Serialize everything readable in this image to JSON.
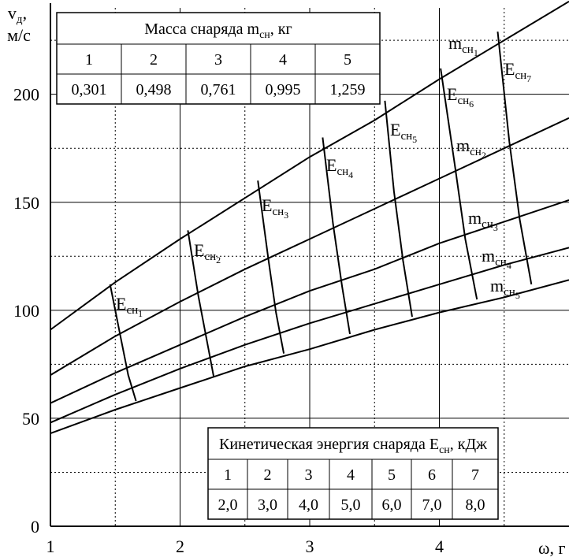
{
  "chart_data": {
    "type": "line",
    "ylabel_main": "v",
    "ylabel_sub": "д",
    "ylabel_suffix": ",",
    "ylabel_unit": "м/с",
    "xlabel": "ω, г",
    "xlim": [
      1,
      5
    ],
    "ylim": [
      0,
      240
    ],
    "xticks": [
      1,
      2,
      3,
      4
    ],
    "xtick_labels": [
      "1",
      "2",
      "3",
      "4"
    ],
    "yticks": [
      0,
      50,
      100,
      150,
      200
    ],
    "ytick_labels": [
      "0",
      "50",
      "100",
      "150",
      "200"
    ],
    "minor_grid": true,
    "mass_curves": [
      {
        "label_main": "m",
        "label_sub": "сн",
        "label_index": "1",
        "x": [
          1,
          1.5,
          2,
          2.5,
          3,
          3.5,
          4,
          4.5,
          5
        ],
        "y": [
          91,
          113,
          133,
          152,
          171,
          188,
          207,
          225,
          243
        ]
      },
      {
        "label_main": "m",
        "label_sub": "сн",
        "label_index": "2",
        "x": [
          1,
          1.5,
          2,
          2.5,
          3,
          3.5,
          4,
          4.5,
          5
        ],
        "y": [
          70,
          88,
          104,
          119,
          133,
          147,
          161,
          175,
          189
        ]
      },
      {
        "label_main": "m",
        "label_sub": "сн",
        "label_index": "3",
        "x": [
          1,
          1.5,
          2,
          2.5,
          3,
          3.5,
          4,
          4.5,
          5
        ],
        "y": [
          57,
          71,
          84,
          97,
          109,
          119,
          131,
          141,
          151
        ]
      },
      {
        "label_main": "m",
        "label_sub": "сн",
        "label_index": "4",
        "x": [
          1,
          1.5,
          2,
          2.5,
          3,
          3.5,
          4,
          4.5,
          5
        ],
        "y": [
          48,
          61,
          73,
          84,
          94,
          103,
          112,
          121,
          129
        ]
      },
      {
        "label_main": "m",
        "label_sub": "сн",
        "label_index": "5",
        "x": [
          1,
          1.5,
          2,
          2.5,
          3,
          3.5,
          4,
          4.5,
          5
        ],
        "y": [
          43,
          54,
          64,
          74,
          82,
          91,
          99,
          106,
          114
        ]
      }
    ],
    "energy_curves": [
      {
        "label_main": "E",
        "label_sub": "сн",
        "label_index": "1",
        "x": [
          1.46,
          1.54,
          1.6,
          1.66
        ],
        "y": [
          112,
          88,
          70,
          58
        ]
      },
      {
        "label_main": "E",
        "label_sub": "сн",
        "label_index": "2",
        "x": [
          2.06,
          2.14,
          2.21,
          2.26
        ],
        "y": [
          137,
          107,
          85,
          69
        ]
      },
      {
        "label_main": "E",
        "label_sub": "сн",
        "label_index": "3",
        "x": [
          2.6,
          2.68,
          2.74,
          2.8
        ],
        "y": [
          160,
          124,
          99,
          80
        ]
      },
      {
        "label_main": "E",
        "label_sub": "сн",
        "label_index": "4",
        "x": [
          3.1,
          3.18,
          3.25,
          3.31
        ],
        "y": [
          180,
          140,
          111,
          89
        ]
      },
      {
        "label_main": "E",
        "label_sub": "сн",
        "label_index": "5",
        "x": [
          3.58,
          3.65,
          3.72,
          3.79
        ],
        "y": [
          197,
          155,
          123,
          97
        ]
      },
      {
        "label_main": "E",
        "label_sub": "сн",
        "label_index": "6",
        "x": [
          4.01,
          4.12,
          4.2,
          4.29
        ],
        "y": [
          212,
          167,
          133,
          105
        ]
      },
      {
        "label_main": "E",
        "label_sub": "сн",
        "label_index": "7",
        "x": [
          4.45,
          4.54,
          4.62,
          4.71
        ],
        "y": [
          229,
          178,
          142,
          112
        ]
      }
    ],
    "mass_table": {
      "title_main": "Масса снаряда m",
      "title_sub": "сн",
      "title_suffix": ", кг",
      "headers": [
        "1",
        "2",
        "3",
        "4",
        "5"
      ],
      "values": [
        "0,301",
        "0,498",
        "0,761",
        "0,995",
        "1,259"
      ]
    },
    "energy_table": {
      "title_main": "Кинетическая энергия снаряда E",
      "title_sub": "сн",
      "title_suffix": ", кДж",
      "headers": [
        "1",
        "2",
        "3",
        "4",
        "5",
        "6",
        "7"
      ],
      "values": [
        "2,0",
        "3,0",
        "4,0",
        "5,0",
        "6,0",
        "7,0",
        "8,0"
      ]
    }
  }
}
